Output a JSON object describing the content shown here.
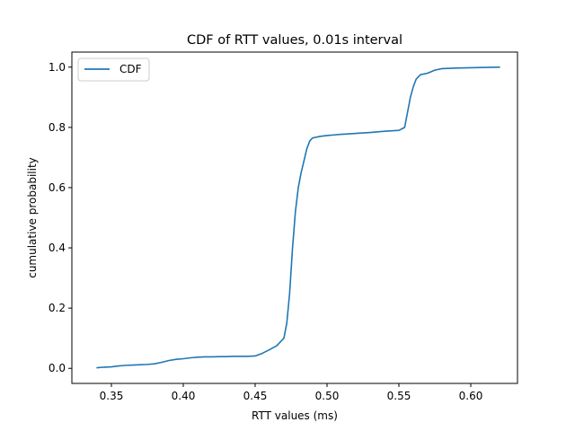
{
  "chart_data": {
    "type": "line",
    "title": "CDF of RTT values, 0.01s interval",
    "xlabel": "RTT values (ms)",
    "ylabel": "cumulative probability",
    "xlim": [
      0.3225,
      0.6325
    ],
    "ylim": [
      -0.05,
      1.05
    ],
    "xticks": [
      0.35,
      0.4,
      0.45,
      0.5,
      0.55,
      0.6
    ],
    "xtick_labels": [
      "0.35",
      "0.40",
      "0.45",
      "0.50",
      "0.55",
      "0.60"
    ],
    "yticks": [
      0.0,
      0.2,
      0.4,
      0.6,
      0.8,
      1.0
    ],
    "ytick_labels": [
      "0.0",
      "0.2",
      "0.4",
      "0.6",
      "0.8",
      "1.0"
    ],
    "grid": false,
    "legend_position": "upper left",
    "series": [
      {
        "name": "CDF",
        "color": "#1f77b4",
        "x": [
          0.34,
          0.345,
          0.35,
          0.355,
          0.36,
          0.365,
          0.37,
          0.375,
          0.38,
          0.385,
          0.39,
          0.395,
          0.4,
          0.405,
          0.41,
          0.415,
          0.42,
          0.425,
          0.43,
          0.435,
          0.44,
          0.445,
          0.45,
          0.455,
          0.46,
          0.465,
          0.47,
          0.472,
          0.474,
          0.476,
          0.478,
          0.48,
          0.482,
          0.484,
          0.486,
          0.488,
          0.49,
          0.495,
          0.5,
          0.505,
          0.51,
          0.52,
          0.53,
          0.54,
          0.55,
          0.554,
          0.556,
          0.558,
          0.56,
          0.562,
          0.565,
          0.57,
          0.575,
          0.58,
          0.59,
          0.6,
          0.61,
          0.62
        ],
        "y": [
          0.002,
          0.004,
          0.005,
          0.008,
          0.01,
          0.011,
          0.012,
          0.013,
          0.015,
          0.02,
          0.026,
          0.03,
          0.032,
          0.035,
          0.037,
          0.038,
          0.038,
          0.039,
          0.039,
          0.04,
          0.04,
          0.04,
          0.041,
          0.05,
          0.062,
          0.075,
          0.1,
          0.15,
          0.25,
          0.4,
          0.52,
          0.6,
          0.65,
          0.69,
          0.73,
          0.755,
          0.765,
          0.77,
          0.773,
          0.775,
          0.777,
          0.78,
          0.783,
          0.787,
          0.79,
          0.8,
          0.85,
          0.9,
          0.935,
          0.96,
          0.975,
          0.98,
          0.99,
          0.995,
          0.997,
          0.998,
          0.999,
          1.0
        ]
      }
    ]
  }
}
